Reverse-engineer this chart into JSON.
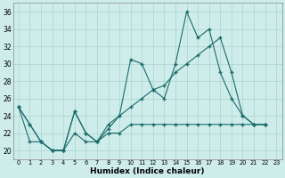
{
  "xlabel": "Humidex (Indice chaleur)",
  "bg_color": "#ceecea",
  "grid_color": "#aad4d0",
  "line_color": "#1a6b6b",
  "xlim": [
    -0.5,
    23.5
  ],
  "ylim": [
    19,
    37
  ],
  "yticks": [
    20,
    22,
    24,
    26,
    28,
    30,
    32,
    34,
    36
  ],
  "xticks": [
    0,
    1,
    2,
    3,
    4,
    5,
    6,
    7,
    8,
    9,
    10,
    11,
    12,
    13,
    14,
    15,
    16,
    17,
    18,
    19,
    20,
    21,
    22,
    23
  ],
  "x": [
    0,
    1,
    2,
    3,
    4,
    5,
    6,
    7,
    8,
    9,
    10,
    11,
    12,
    13,
    14,
    15,
    16,
    17,
    18,
    19,
    20,
    21,
    22
  ],
  "line1": [
    25,
    23,
    21,
    20,
    20,
    24.5,
    22,
    21,
    22.5,
    24,
    30.5,
    30,
    27,
    26,
    30,
    36,
    33,
    34,
    29,
    26,
    24,
    23,
    23
  ],
  "line2": [
    25,
    23,
    21,
    20,
    20,
    24.5,
    22,
    21,
    23,
    24,
    25,
    26,
    27,
    27.5,
    29,
    30,
    31,
    32,
    33,
    29,
    24,
    23,
    23
  ],
  "line3": [
    25,
    21,
    21,
    20,
    20,
    22,
    21,
    21,
    22,
    22,
    23,
    23,
    23,
    23,
    23,
    23,
    23,
    23,
    23,
    23,
    23,
    23,
    23
  ]
}
